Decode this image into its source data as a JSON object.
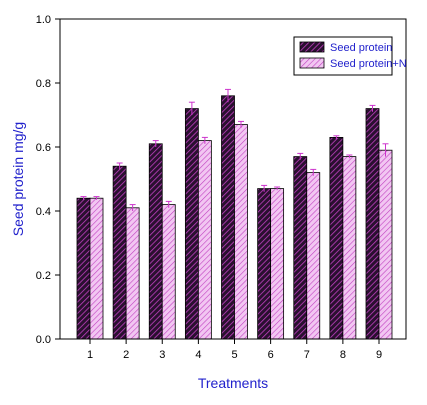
{
  "chart_data": {
    "type": "bar",
    "title": "",
    "xlabel": "Treatments",
    "ylabel": "Seed protein mg/g",
    "ylim": [
      0,
      1.0
    ],
    "yticks": [
      "0.0",
      "0.2",
      "0.4",
      "0.6",
      "0.8",
      "1.0"
    ],
    "categories": [
      "1",
      "2",
      "3",
      "4",
      "5",
      "6",
      "7",
      "8",
      "9"
    ],
    "legend_position": "top-right",
    "grid": false,
    "series": [
      {
        "name": "Seed protein",
        "values": [
          0.44,
          0.54,
          0.61,
          0.72,
          0.76,
          0.47,
          0.57,
          0.63,
          0.72
        ],
        "errors": [
          0.005,
          0.01,
          0.01,
          0.02,
          0.02,
          0.01,
          0.01,
          0.005,
          0.01
        ],
        "fill": "#2a1030",
        "hatch": "#c040c0"
      },
      {
        "name": "Seed protein+N",
        "values": [
          0.44,
          0.41,
          0.42,
          0.62,
          0.67,
          0.47,
          0.52,
          0.57,
          0.59
        ],
        "errors": [
          0.005,
          0.01,
          0.01,
          0.01,
          0.01,
          0.005,
          0.01,
          0.005,
          0.02
        ],
        "fill": "#f2c6f2",
        "hatch": "#c040c0"
      }
    ],
    "error_color": "#cc33cc"
  }
}
